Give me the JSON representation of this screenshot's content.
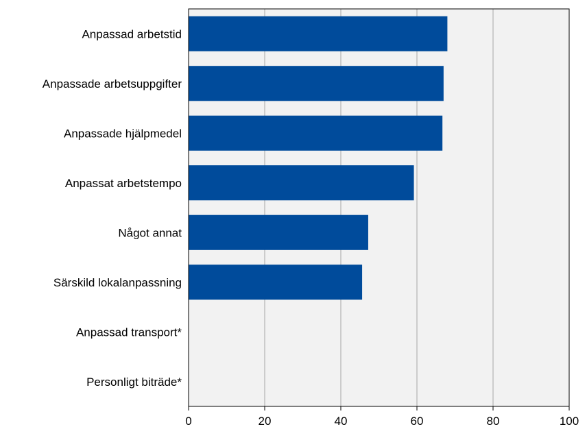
{
  "chart_data": {
    "type": "bar",
    "orientation": "horizontal",
    "categories": [
      "Anpassad arbetstid",
      "Anpassade arbetsuppgifter",
      "Anpassade hjälpmedel",
      "Anpassat arbetstempo",
      "Något annat",
      "Särskild lokalanpassning",
      "Anpassad transport*",
      "Personligt biträde*"
    ],
    "values": [
      68,
      67,
      66.7,
      59.2,
      47.2,
      45.6,
      null,
      null
    ],
    "xlim": [
      0,
      100
    ],
    "xticks": [
      0,
      20,
      40,
      60,
      80,
      100
    ],
    "grid": true,
    "bar_color": "#004b9b",
    "plot_background": "#f2f2f2",
    "grid_color": "#a6a6a6",
    "title": "",
    "xlabel": "",
    "ylabel": ""
  }
}
